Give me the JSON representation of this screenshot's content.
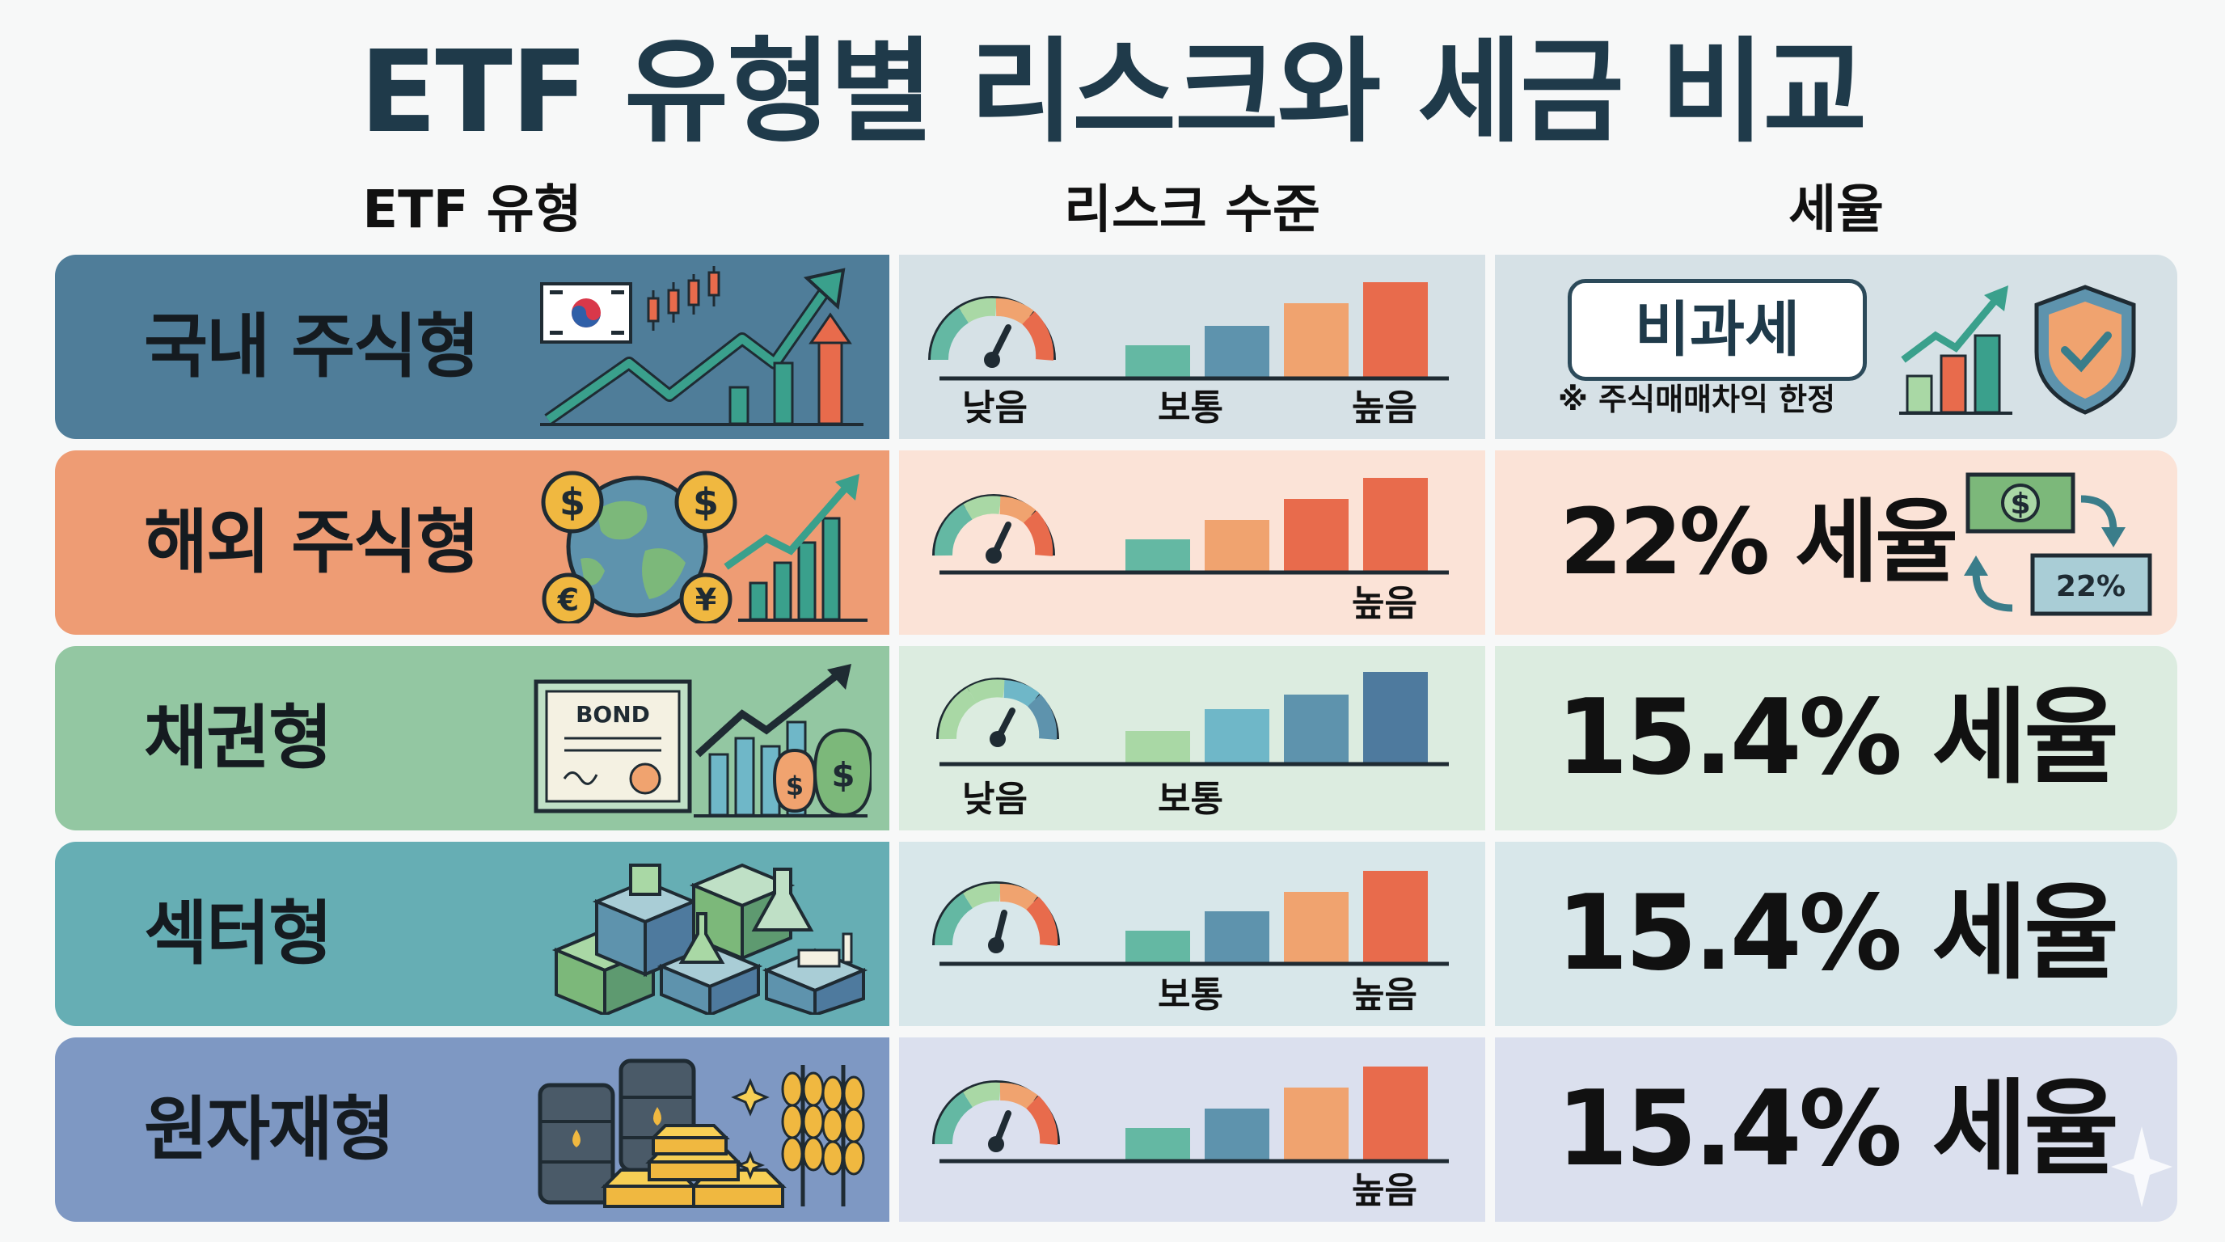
{
  "title": "ETF 유형별 리스크와 세금 비교",
  "headers": {
    "type": "ETF 유형",
    "risk": "리스크 수준",
    "tax": "세율"
  },
  "risk_labels": {
    "low": "낮음",
    "mid": "보통",
    "high": "높음"
  },
  "rows": [
    {
      "name": "국내 주식형",
      "tax_badge": "비과세",
      "tax_note": "※ 주식매매차익 한정",
      "risk_shown": [
        "낮음",
        "보통",
        "높음"
      ],
      "colors": {
        "left": "#4f7d99",
        "mid": "#d6e1e6",
        "right": "#d6e1e6"
      }
    },
    {
      "name": "해외 주식형",
      "tax": "22% 세율",
      "tax_icon_label": "22%",
      "risk_shown": [
        "높음"
      ],
      "colors": {
        "left": "#ee9c74",
        "mid": "#fbe3d7",
        "right": "#fbe3d7"
      }
    },
    {
      "name": "채권형",
      "tax": "15.4% 세율",
      "bond_label": "BOND",
      "risk_shown": [
        "낮음",
        "보통"
      ],
      "colors": {
        "left": "#93c7a2",
        "mid": "#dcece0",
        "right": "#dcece0"
      }
    },
    {
      "name": "섹터형",
      "tax": "15.4% 세율",
      "risk_shown": [
        "보통",
        "높음"
      ],
      "colors": {
        "left": "#66aeb4",
        "mid": "#d8e7ea",
        "right": "#d8e7ea"
      }
    },
    {
      "name": "원자재형",
      "tax": "15.4% 세율",
      "risk_shown": [
        "높음"
      ],
      "colors": {
        "left": "#7e98c3",
        "mid": "#dbe0ee",
        "right": "#dbe0ee"
      }
    }
  ],
  "bar_colors": [
    "#64b8a3",
    "#5e93ad",
    "#f0a36f",
    "#e86b4c"
  ],
  "bond_bar_colors": [
    "#a9d8a5",
    "#6fb7c8",
    "#5e93ad",
    "#4e7a9e"
  ]
}
